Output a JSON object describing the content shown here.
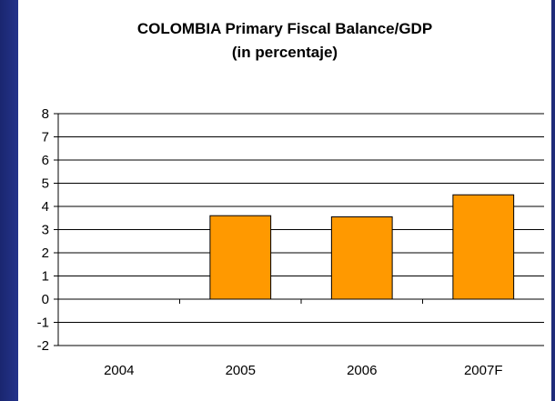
{
  "chart_data": {
    "type": "bar",
    "title_line1": "COLOMBIA Primary Fiscal Balance/GDP",
    "title_line2": "(in percentaje)",
    "categories": [
      "2004",
      "2005",
      "2006",
      "2007F"
    ],
    "values": [
      0,
      3.6,
      3.55,
      4.5
    ],
    "xlabel": "",
    "ylabel": "",
    "ylim": [
      -2,
      8
    ],
    "yticks": [
      "-2",
      "-1",
      "0",
      "1",
      "2",
      "3",
      "4",
      "5",
      "6",
      "7",
      "8"
    ],
    "grid": true,
    "legend": "none",
    "bar_color": "#ff9900",
    "bar_edge_color": "#000000"
  }
}
